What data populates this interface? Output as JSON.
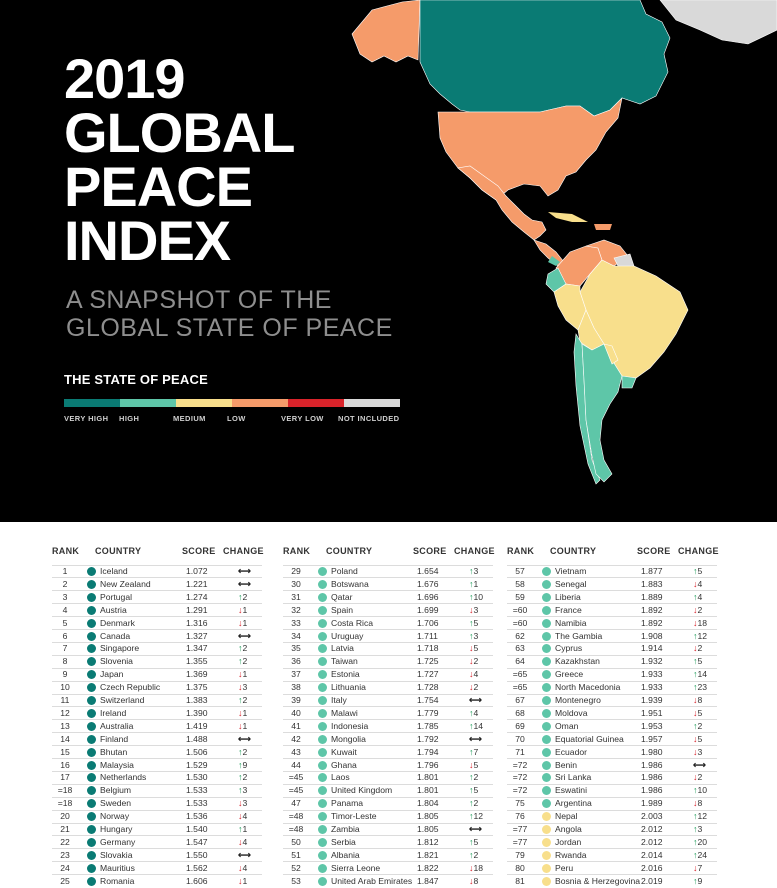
{
  "title_lines": [
    "2019",
    "GLOBAL",
    "PEACE",
    "INDEX"
  ],
  "subtitle_lines": [
    "A SNAPSHOT OF THE",
    "GLOBAL STATE OF PEACE"
  ],
  "legend": {
    "title": "THE STATE OF PEACE",
    "items": [
      {
        "label": "VERY HIGH",
        "color": "#0a7b74"
      },
      {
        "label": "HIGH",
        "color": "#5ec6a8"
      },
      {
        "label": "MEDIUM",
        "color": "#f8df8c"
      },
      {
        "label": "LOW",
        "color": "#f59b6a"
      },
      {
        "label": "VERY LOW",
        "color": "#d8232a"
      },
      {
        "label": "NOT INCLUDED",
        "color": "#d9d9d9"
      }
    ]
  },
  "table": {
    "headers": {
      "rank": "RANK",
      "country": "COUNTRY",
      "score": "SCORE",
      "change": "CHANGE"
    },
    "columns": [
      [
        {
          "rank": "1",
          "country": "Iceland",
          "score": "1.072",
          "dir": "nc",
          "chg": "",
          "level": "very_high"
        },
        {
          "rank": "2",
          "country": "New Zealand",
          "score": "1.221",
          "dir": "nc",
          "chg": "",
          "level": "very_high"
        },
        {
          "rank": "3",
          "country": "Portugal",
          "score": "1.274",
          "dir": "up",
          "chg": "2",
          "level": "very_high"
        },
        {
          "rank": "4",
          "country": "Austria",
          "score": "1.291",
          "dir": "down",
          "chg": "1",
          "level": "very_high"
        },
        {
          "rank": "5",
          "country": "Denmark",
          "score": "1.316",
          "dir": "down",
          "chg": "1",
          "level": "very_high"
        },
        {
          "rank": "6",
          "country": "Canada",
          "score": "1.327",
          "dir": "nc",
          "chg": "",
          "level": "very_high"
        },
        {
          "rank": "7",
          "country": "Singapore",
          "score": "1.347",
          "dir": "up",
          "chg": "2",
          "level": "very_high"
        },
        {
          "rank": "8",
          "country": "Slovenia",
          "score": "1.355",
          "dir": "up",
          "chg": "2",
          "level": "very_high"
        },
        {
          "rank": "9",
          "country": "Japan",
          "score": "1.369",
          "dir": "down",
          "chg": "1",
          "level": "very_high"
        },
        {
          "rank": "10",
          "country": "Czech Republic",
          "score": "1.375",
          "dir": "down",
          "chg": "3",
          "level": "very_high"
        },
        {
          "rank": "11",
          "country": "Switzerland",
          "score": "1.383",
          "dir": "up",
          "chg": "2",
          "level": "very_high"
        },
        {
          "rank": "12",
          "country": "Ireland",
          "score": "1.390",
          "dir": "down",
          "chg": "1",
          "level": "very_high"
        },
        {
          "rank": "13",
          "country": "Australia",
          "score": "1.419",
          "dir": "down",
          "chg": "1",
          "level": "very_high"
        },
        {
          "rank": "14",
          "country": "Finland",
          "score": "1.488",
          "dir": "nc",
          "chg": "",
          "level": "very_high"
        },
        {
          "rank": "15",
          "country": "Bhutan",
          "score": "1.506",
          "dir": "up",
          "chg": "2",
          "level": "very_high"
        },
        {
          "rank": "16",
          "country": "Malaysia",
          "score": "1.529",
          "dir": "up",
          "chg": "9",
          "level": "very_high"
        },
        {
          "rank": "17",
          "country": "Netherlands",
          "score": "1.530",
          "dir": "up",
          "chg": "2",
          "level": "very_high"
        },
        {
          "rank": "=18",
          "country": "Belgium",
          "score": "1.533",
          "dir": "up",
          "chg": "3",
          "level": "very_high"
        },
        {
          "rank": "=18",
          "country": "Sweden",
          "score": "1.533",
          "dir": "down",
          "chg": "3",
          "level": "very_high"
        },
        {
          "rank": "20",
          "country": "Norway",
          "score": "1.536",
          "dir": "down",
          "chg": "4",
          "level": "very_high"
        },
        {
          "rank": "21",
          "country": "Hungary",
          "score": "1.540",
          "dir": "up",
          "chg": "1",
          "level": "very_high"
        },
        {
          "rank": "22",
          "country": "Germany",
          "score": "1.547",
          "dir": "down",
          "chg": "4",
          "level": "very_high"
        },
        {
          "rank": "23",
          "country": "Slovakia",
          "score": "1.550",
          "dir": "nc",
          "chg": "",
          "level": "very_high"
        },
        {
          "rank": "24",
          "country": "Mauritius",
          "score": "1.562",
          "dir": "down",
          "chg": "4",
          "level": "very_high"
        },
        {
          "rank": "25",
          "country": "Romania",
          "score": "1.606",
          "dir": "down",
          "chg": "1",
          "level": "very_high"
        }
      ],
      [
        {
          "rank": "29",
          "country": "Poland",
          "score": "1.654",
          "dir": "up",
          "chg": "3",
          "level": "high"
        },
        {
          "rank": "30",
          "country": "Botswana",
          "score": "1.676",
          "dir": "up",
          "chg": "1",
          "level": "high"
        },
        {
          "rank": "31",
          "country": "Qatar",
          "score": "1.696",
          "dir": "up",
          "chg": "10",
          "level": "high"
        },
        {
          "rank": "32",
          "country": "Spain",
          "score": "1.699",
          "dir": "down",
          "chg": "3",
          "level": "high"
        },
        {
          "rank": "33",
          "country": "Costa Rica",
          "score": "1.706",
          "dir": "up",
          "chg": "5",
          "level": "high"
        },
        {
          "rank": "34",
          "country": "Uruguay",
          "score": "1.711",
          "dir": "up",
          "chg": "3",
          "level": "high"
        },
        {
          "rank": "35",
          "country": "Latvia",
          "score": "1.718",
          "dir": "down",
          "chg": "5",
          "level": "high"
        },
        {
          "rank": "36",
          "country": "Taiwan",
          "score": "1.725",
          "dir": "down",
          "chg": "2",
          "level": "high"
        },
        {
          "rank": "37",
          "country": "Estonia",
          "score": "1.727",
          "dir": "down",
          "chg": "4",
          "level": "high"
        },
        {
          "rank": "38",
          "country": "Lithuania",
          "score": "1.728",
          "dir": "down",
          "chg": "2",
          "level": "high"
        },
        {
          "rank": "39",
          "country": "Italy",
          "score": "1.754",
          "dir": "nc",
          "chg": "",
          "level": "high"
        },
        {
          "rank": "40",
          "country": "Malawi",
          "score": "1.779",
          "dir": "up",
          "chg": "4",
          "level": "high"
        },
        {
          "rank": "41",
          "country": "Indonesia",
          "score": "1.785",
          "dir": "up",
          "chg": "14",
          "level": "high"
        },
        {
          "rank": "42",
          "country": "Mongolia",
          "score": "1.792",
          "dir": "nc",
          "chg": "",
          "level": "high"
        },
        {
          "rank": "43",
          "country": "Kuwait",
          "score": "1.794",
          "dir": "up",
          "chg": "7",
          "level": "high"
        },
        {
          "rank": "44",
          "country": "Ghana",
          "score": "1.796",
          "dir": "down",
          "chg": "5",
          "level": "high"
        },
        {
          "rank": "=45",
          "country": "Laos",
          "score": "1.801",
          "dir": "up",
          "chg": "2",
          "level": "high"
        },
        {
          "rank": "=45",
          "country": "United Kingdom",
          "score": "1.801",
          "dir": "up",
          "chg": "5",
          "level": "high"
        },
        {
          "rank": "47",
          "country": "Panama",
          "score": "1.804",
          "dir": "up",
          "chg": "2",
          "level": "high"
        },
        {
          "rank": "=48",
          "country": "Timor-Leste",
          "score": "1.805",
          "dir": "up",
          "chg": "12",
          "level": "high"
        },
        {
          "rank": "=48",
          "country": "Zambia",
          "score": "1.805",
          "dir": "nc",
          "chg": "",
          "level": "high"
        },
        {
          "rank": "50",
          "country": "Serbia",
          "score": "1.812",
          "dir": "up",
          "chg": "5",
          "level": "high"
        },
        {
          "rank": "51",
          "country": "Albania",
          "score": "1.821",
          "dir": "up",
          "chg": "2",
          "level": "high"
        },
        {
          "rank": "52",
          "country": "Sierra Leone",
          "score": "1.822",
          "dir": "down",
          "chg": "18",
          "level": "high"
        },
        {
          "rank": "53",
          "country": "United Arab Emirates",
          "score": "1.847",
          "dir": "down",
          "chg": "8",
          "level": "high"
        }
      ],
      [
        {
          "rank": "57",
          "country": "Vietnam",
          "score": "1.877",
          "dir": "up",
          "chg": "5",
          "level": "high"
        },
        {
          "rank": "58",
          "country": "Senegal",
          "score": "1.883",
          "dir": "down",
          "chg": "4",
          "level": "high"
        },
        {
          "rank": "59",
          "country": "Liberia",
          "score": "1.889",
          "dir": "up",
          "chg": "4",
          "level": "high"
        },
        {
          "rank": "=60",
          "country": "France",
          "score": "1.892",
          "dir": "down",
          "chg": "2",
          "level": "high"
        },
        {
          "rank": "=60",
          "country": "Namibia",
          "score": "1.892",
          "dir": "down",
          "chg": "18",
          "level": "high"
        },
        {
          "rank": "62",
          "country": "The Gambia",
          "score": "1.908",
          "dir": "up",
          "chg": "12",
          "level": "high"
        },
        {
          "rank": "63",
          "country": "Cyprus",
          "score": "1.914",
          "dir": "down",
          "chg": "2",
          "level": "high"
        },
        {
          "rank": "64",
          "country": "Kazakhstan",
          "score": "1.932",
          "dir": "up",
          "chg": "5",
          "level": "high"
        },
        {
          "rank": "=65",
          "country": "Greece",
          "score": "1.933",
          "dir": "up",
          "chg": "14",
          "level": "high"
        },
        {
          "rank": "=65",
          "country": "North Macedonia",
          "score": "1.933",
          "dir": "up",
          "chg": "23",
          "level": "high"
        },
        {
          "rank": "67",
          "country": "Montenegro",
          "score": "1.939",
          "dir": "down",
          "chg": "8",
          "level": "high"
        },
        {
          "rank": "68",
          "country": "Moldova",
          "score": "1.951",
          "dir": "down",
          "chg": "5",
          "level": "high"
        },
        {
          "rank": "69",
          "country": "Oman",
          "score": "1.953",
          "dir": "up",
          "chg": "2",
          "level": "high"
        },
        {
          "rank": "70",
          "country": "Equatorial Guinea",
          "score": "1.957",
          "dir": "down",
          "chg": "5",
          "level": "high"
        },
        {
          "rank": "71",
          "country": "Ecuador",
          "score": "1.980",
          "dir": "down",
          "chg": "3",
          "level": "high"
        },
        {
          "rank": "=72",
          "country": "Benin",
          "score": "1.986",
          "dir": "nc",
          "chg": "",
          "level": "high"
        },
        {
          "rank": "=72",
          "country": "Sri Lanka",
          "score": "1.986",
          "dir": "down",
          "chg": "2",
          "level": "high"
        },
        {
          "rank": "=72",
          "country": "Eswatini",
          "score": "1.986",
          "dir": "up",
          "chg": "10",
          "level": "high"
        },
        {
          "rank": "75",
          "country": "Argentina",
          "score": "1.989",
          "dir": "down",
          "chg": "8",
          "level": "high"
        },
        {
          "rank": "76",
          "country": "Nepal",
          "score": "2.003",
          "dir": "up",
          "chg": "12",
          "level": "medium"
        },
        {
          "rank": "=77",
          "country": "Angola",
          "score": "2.012",
          "dir": "up",
          "chg": "3",
          "level": "medium"
        },
        {
          "rank": "=77",
          "country": "Jordan",
          "score": "2.012",
          "dir": "up",
          "chg": "20",
          "level": "medium"
        },
        {
          "rank": "79",
          "country": "Rwanda",
          "score": "2.014",
          "dir": "up",
          "chg": "24",
          "level": "medium"
        },
        {
          "rank": "80",
          "country": "Peru",
          "score": "2.016",
          "dir": "down",
          "chg": "7",
          "level": "medium"
        },
        {
          "rank": "81",
          "country": "Bosnia & Herzegovina",
          "score": "2.019",
          "dir": "up",
          "chg": "9",
          "level": "medium"
        }
      ]
    ]
  },
  "level_colors": {
    "very_high": "#0a7b74",
    "high": "#5ec6a8",
    "medium": "#f8df8c",
    "low": "#f59b6a",
    "very_low": "#d8232a"
  },
  "icons": {
    "up": "arrow-up-icon",
    "down": "arrow-down-icon",
    "nc": "no-change-icon",
    "dot": "peace-level-dot-icon"
  }
}
